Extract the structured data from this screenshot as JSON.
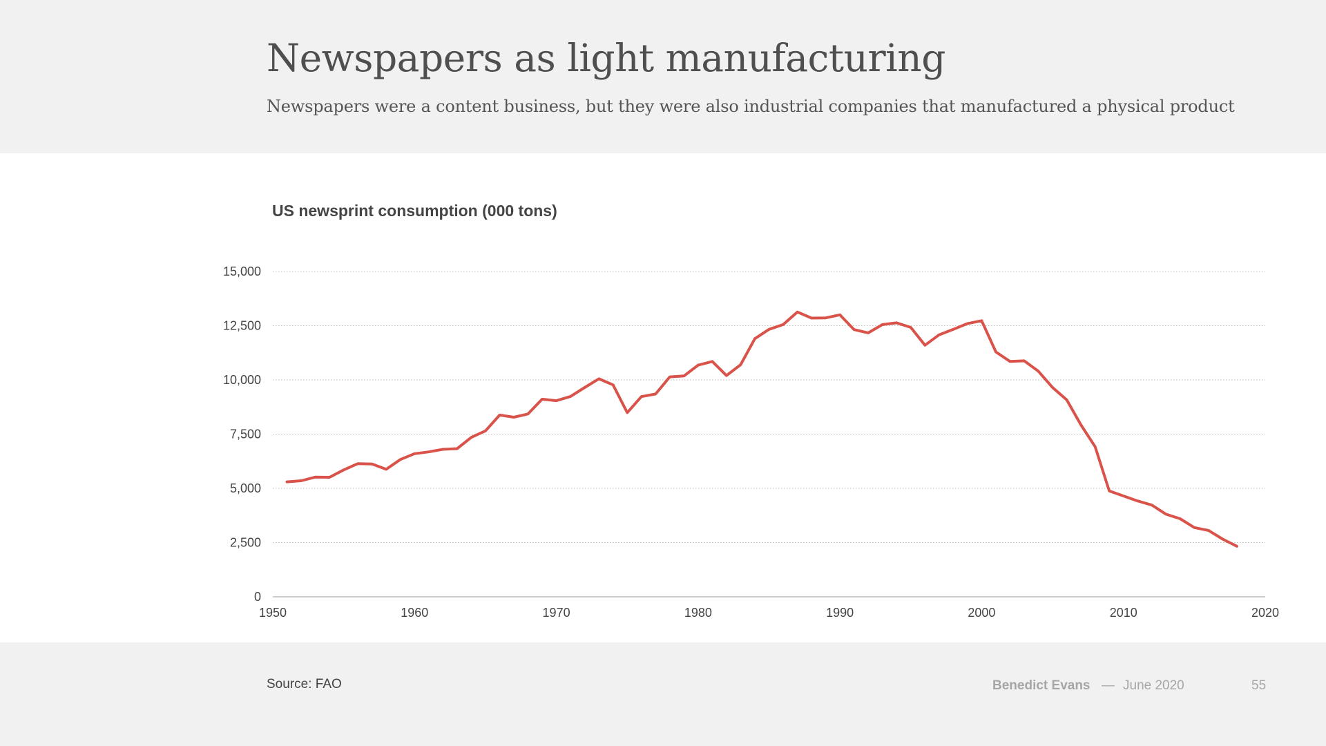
{
  "header": {
    "title": "Newspapers as light manufacturing",
    "subtitle": "Newspapers were a content business, but they were also industrial companies that manufactured a physical product"
  },
  "footer": {
    "source": "Source: FAO",
    "author": "Benedict Evans",
    "separator": "—",
    "date": "June 2020",
    "page_number": "55"
  },
  "colors": {
    "line": "#d9534a",
    "grid": "#bdbdbd",
    "band": "#f1f1f1"
  },
  "chart_data": {
    "type": "line",
    "title": "US newsprint consumption (000 tons)",
    "xlabel": "",
    "ylabel": "",
    "xlim": [
      1950,
      2020
    ],
    "ylim": [
      0,
      15000
    ],
    "x_ticks": [
      1950,
      1960,
      1970,
      1980,
      1990,
      2000,
      2010,
      2020
    ],
    "y_ticks": [
      0,
      2500,
      5000,
      7500,
      10000,
      12500,
      15000
    ],
    "y_tick_labels": [
      "0",
      "2,500",
      "5,000",
      "7,500",
      "10,000",
      "12,500",
      "15,000"
    ],
    "grid": "horizontal dotted",
    "series": [
      {
        "x": [
          1951,
          1952,
          1953,
          1954,
          1955,
          1956,
          1957,
          1958,
          1959,
          1960,
          1961,
          1962,
          1963,
          1964,
          1965,
          1966,
          1967,
          1968,
          1969,
          1970,
          1971,
          1972,
          1973,
          1974,
          1975,
          1976,
          1977,
          1978,
          1979,
          1980,
          1981,
          1982,
          1983,
          1984,
          1985,
          1986,
          1987,
          1988,
          1989,
          1990,
          1991,
          1992,
          1993,
          1994,
          1995,
          1996,
          1997,
          1998,
          1999,
          2000,
          2001,
          2002,
          2003,
          2004,
          2005,
          2006,
          2007,
          2008,
          2009,
          2010,
          2011,
          2012,
          2013,
          2014,
          2015,
          2016,
          2017,
          2018
        ],
        "values": [
          5300,
          5350,
          5520,
          5510,
          5850,
          6140,
          6120,
          5880,
          6330,
          6600,
          6680,
          6800,
          6830,
          7350,
          7650,
          8380,
          8280,
          8430,
          9110,
          9040,
          9240,
          9650,
          10050,
          9770,
          8490,
          9230,
          9350,
          10140,
          10180,
          10680,
          10850,
          10200,
          10700,
          11900,
          12330,
          12550,
          13130,
          12850,
          12860,
          13000,
          12320,
          12170,
          12550,
          12630,
          12420,
          11600,
          12080,
          12330,
          12600,
          12730,
          11290,
          10850,
          10880,
          10400,
          9650,
          9080,
          7930,
          6920,
          4880,
          4650,
          4420,
          4230,
          3810,
          3600,
          3190,
          3060,
          2660,
          2330
        ]
      }
    ]
  }
}
